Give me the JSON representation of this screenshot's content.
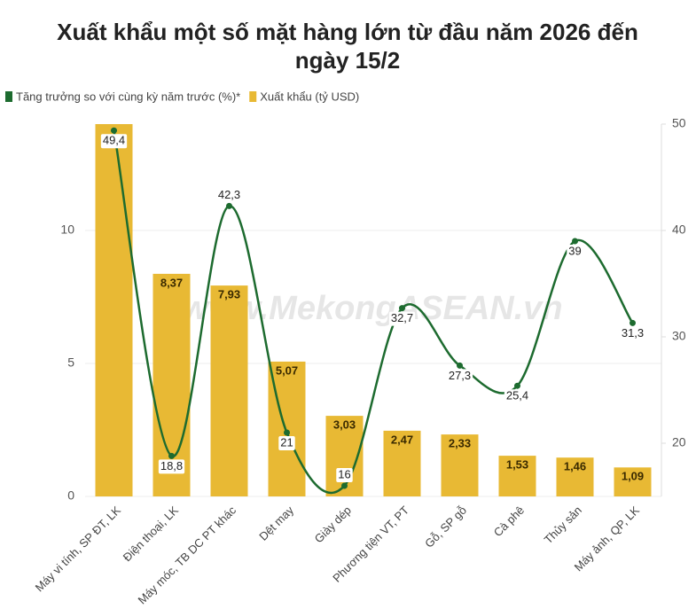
{
  "chart_data": {
    "type": "bar-line",
    "title": "Xuất khẩu một số mặt hàng lớn từ đầu năm 2026 đến ngày 15/2",
    "watermark": "www.MekongASEAN.vn",
    "categories": [
      "Máy vi tính, SP ĐT, LK",
      "Điện thoại, LK",
      "Máy móc, TB DC PT khác",
      "Dệt may",
      "Giày dép",
      "Phương tiện VT, PT",
      "Gỗ, SP gỗ",
      "Cà phê",
      "Thủy sản",
      "Máy ảnh, QP, LK"
    ],
    "series": [
      {
        "name": "Xuất khẩu (tỷ USD)",
        "type": "bar",
        "color": "#e8b934",
        "values": [
          14,
          8.37,
          7.93,
          5.07,
          3.03,
          2.47,
          2.33,
          1.53,
          1.46,
          1.09
        ],
        "value_labels": [
          null,
          "8,37",
          "7,93",
          "5,07",
          "3,03",
          "2,47",
          "2,33",
          "1,53",
          "1,46",
          "1,09"
        ]
      },
      {
        "name": "Tăng trưởng so với cùng kỳ năm trước (%)*",
        "type": "line",
        "axis": "y2",
        "color": "#1d6b2f",
        "values": [
          49.4,
          18.8,
          42.3,
          21,
          16,
          32.7,
          27.3,
          25.4,
          39,
          31.3
        ],
        "value_labels": [
          "49,4",
          "18,8",
          "42,3",
          "21",
          "16",
          "32,7",
          "27,3",
          "25,4",
          "39",
          "31,3"
        ]
      }
    ],
    "ylim": [
      0,
      14
    ],
    "yticks": [
      0,
      5,
      10
    ],
    "y2lim": [
      15,
      50
    ],
    "y2ticks": [
      20,
      30,
      40,
      50
    ],
    "grid": true
  }
}
